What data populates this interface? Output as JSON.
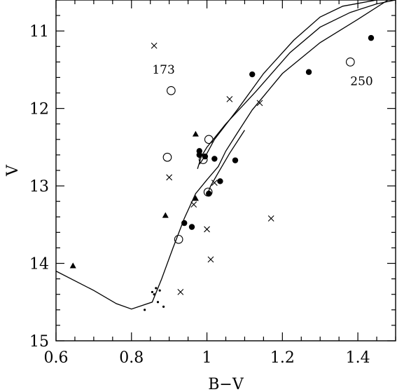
{
  "chart_data": {
    "type": "scatter",
    "title": "",
    "xlabel": "B−V",
    "ylabel": "V",
    "xlim": [
      0.6,
      1.5
    ],
    "ylim": [
      15,
      10.6
    ],
    "y_inverted": true,
    "grid": false,
    "x_ticks": [
      0.6,
      0.8,
      1,
      1.2,
      1.4
    ],
    "x_tick_labels": [
      "0.6",
      "0.8",
      "1",
      "1.2",
      "1.4"
    ],
    "y_ticks": [
      11,
      12,
      13,
      14,
      15
    ],
    "y_tick_labels": [
      "11",
      "12",
      "13",
      "14",
      "15"
    ],
    "annotations": [
      {
        "text": "173",
        "x": 0.885,
        "y": 11.55
      },
      {
        "text": "250",
        "x": 1.41,
        "y": 11.7
      }
    ],
    "series": [
      {
        "marker": "filled-circle",
        "points": [
          {
            "x": 0.98,
            "y": 12.55
          },
          {
            "x": 0.98,
            "y": 12.6
          },
          {
            "x": 0.995,
            "y": 12.62
          },
          {
            "x": 1.02,
            "y": 12.65
          },
          {
            "x": 1.075,
            "y": 12.67
          },
          {
            "x": 1.035,
            "y": 12.94
          },
          {
            "x": 1.005,
            "y": 13.1
          },
          {
            "x": 0.94,
            "y": 13.48
          },
          {
            "x": 0.96,
            "y": 13.53
          },
          {
            "x": 1.12,
            "y": 11.56
          },
          {
            "x": 1.27,
            "y": 11.53
          },
          {
            "x": 1.435,
            "y": 11.09
          }
        ]
      },
      {
        "marker": "open-circle",
        "points": [
          {
            "x": 0.905,
            "y": 11.77
          },
          {
            "x": 1.38,
            "y": 11.4
          },
          {
            "x": 1.005,
            "y": 12.4
          },
          {
            "x": 0.895,
            "y": 12.63
          },
          {
            "x": 0.99,
            "y": 12.66
          },
          {
            "x": 1.003,
            "y": 13.08
          },
          {
            "x": 0.925,
            "y": 13.69
          }
        ]
      },
      {
        "marker": "cross",
        "points": [
          {
            "x": 0.86,
            "y": 11.19
          },
          {
            "x": 1.06,
            "y": 11.88
          },
          {
            "x": 1.14,
            "y": 11.93
          },
          {
            "x": 0.9,
            "y": 12.89
          },
          {
            "x": 1.02,
            "y": 12.96
          },
          {
            "x": 0.965,
            "y": 13.24
          },
          {
            "x": 1.0,
            "y": 13.56
          },
          {
            "x": 1.17,
            "y": 13.42
          },
          {
            "x": 1.01,
            "y": 13.95
          },
          {
            "x": 0.93,
            "y": 14.37
          }
        ]
      },
      {
        "marker": "filled-triangle",
        "points": [
          {
            "x": 0.645,
            "y": 14.03
          },
          {
            "x": 0.97,
            "y": 12.33
          },
          {
            "x": 0.97,
            "y": 13.16
          },
          {
            "x": 0.89,
            "y": 13.38
          }
        ]
      },
      {
        "marker": "small-dot",
        "points": [
          {
            "x": 0.835,
            "y": 14.6
          },
          {
            "x": 0.855,
            "y": 14.37
          },
          {
            "x": 0.86,
            "y": 14.4
          },
          {
            "x": 0.865,
            "y": 14.32
          },
          {
            "x": 0.87,
            "y": 14.5
          },
          {
            "x": 0.875,
            "y": 14.35
          },
          {
            "x": 0.885,
            "y": 14.56
          }
        ]
      }
    ],
    "curves": [
      {
        "style": "line",
        "points": [
          [
            0.6,
            14.1
          ],
          [
            0.7,
            14.35
          ],
          [
            0.76,
            14.52
          ],
          [
            0.8,
            14.59
          ],
          [
            0.855,
            14.5
          ],
          [
            0.88,
            14.2
          ],
          [
            0.91,
            13.8
          ],
          [
            0.94,
            13.42
          ],
          [
            0.97,
            13.1
          ],
          [
            1.0,
            12.92
          ],
          [
            1.03,
            12.75
          ],
          [
            1.05,
            12.55
          ],
          [
            1.08,
            12.32
          ],
          [
            1.12,
            12.02
          ],
          [
            1.2,
            11.55
          ],
          [
            1.3,
            11.15
          ],
          [
            1.4,
            10.85
          ],
          [
            1.48,
            10.6
          ]
        ]
      },
      {
        "style": "line",
        "points": [
          [
            0.975,
            12.78
          ],
          [
            0.985,
            12.62
          ],
          [
            1.0,
            12.5
          ],
          [
            1.05,
            12.2
          ],
          [
            1.13,
            11.78
          ],
          [
            1.22,
            11.28
          ],
          [
            1.3,
            10.95
          ],
          [
            1.38,
            10.76
          ],
          [
            1.45,
            10.65
          ],
          [
            1.5,
            10.6
          ]
        ]
      },
      {
        "style": "line",
        "points": [
          [
            0.98,
            12.72
          ],
          [
            1.0,
            12.58
          ],
          [
            1.02,
            12.4
          ],
          [
            1.08,
            12.02
          ],
          [
            1.15,
            11.55
          ],
          [
            1.23,
            11.12
          ],
          [
            1.3,
            10.82
          ],
          [
            1.36,
            10.68
          ],
          [
            1.45,
            10.6
          ]
        ]
      },
      {
        "style": "line",
        "points": [
          [
            1.0,
            13.12
          ],
          [
            1.01,
            13.0
          ],
          [
            1.03,
            12.83
          ],
          [
            1.06,
            12.58
          ],
          [
            1.1,
            12.28
          ]
        ]
      }
    ]
  }
}
